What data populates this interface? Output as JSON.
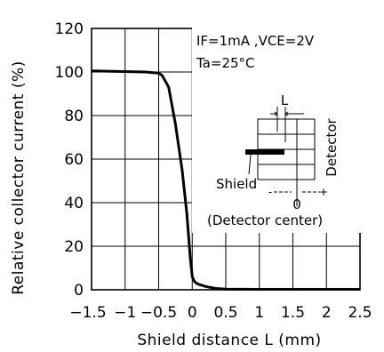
{
  "chart_data": {
    "type": "line",
    "title": "",
    "xlabel": "Shield distance L (mm)",
    "ylabel": "Relative collector current (%)",
    "xlim": [
      -1.5,
      2.5
    ],
    "ylim": [
      0,
      120
    ],
    "x_ticks": [
      -1.5,
      -1,
      -0.5,
      0,
      0.5,
      1,
      1.5,
      2,
      2.5
    ],
    "x_tick_labels": [
      "−1.5",
      "−1",
      "−0.5",
      "0",
      "0.5",
      "1",
      "1.5",
      "2",
      "2.5"
    ],
    "y_ticks": [
      0,
      20,
      40,
      60,
      80,
      100,
      120
    ],
    "y_tick_labels": [
      "0",
      "20",
      "40",
      "60",
      "80",
      "100",
      "120"
    ],
    "grid": true,
    "series": [
      {
        "name": "",
        "x": [
          -1.5,
          -0.7,
          -0.5,
          -0.45,
          -0.35,
          -0.25,
          -0.15,
          -0.08,
          -0.03,
          0.0,
          0.03,
          0.06,
          0.1,
          0.2,
          0.35,
          0.5,
          1.0,
          1.5,
          2.0,
          2.5
        ],
        "y": [
          100.5,
          100,
          99.5,
          98.5,
          93,
          76,
          55,
          35,
          15,
          6,
          4,
          3,
          2.5,
          1.5,
          0.6,
          0.3,
          0.2,
          0.2,
          0.2,
          0.2
        ]
      }
    ],
    "annotations": {
      "conditions_line1": "IF=1mA  ,VCE=2V",
      "conditions_line2": "Ta=25°C",
      "diagram_L": "L",
      "diagram_detector": "Detector",
      "diagram_shield": "Shield",
      "diagram_minus": "-",
      "diagram_zero": "0",
      "diagram_plus": "+",
      "diagram_center": "(Detector center)"
    }
  }
}
